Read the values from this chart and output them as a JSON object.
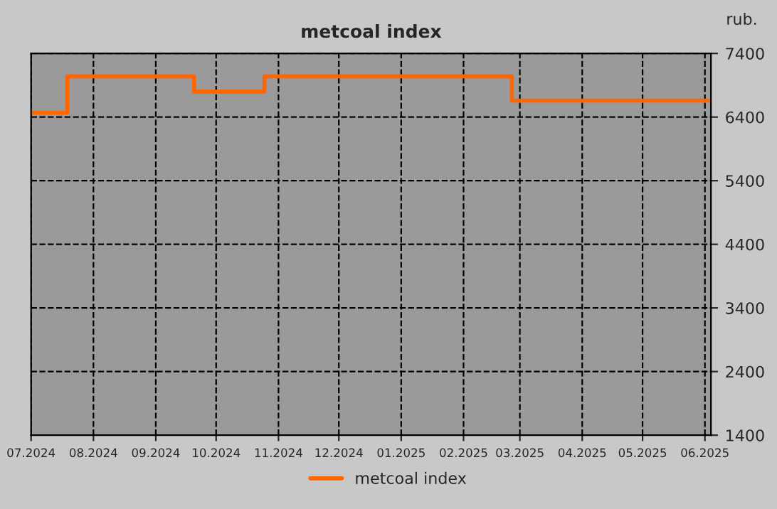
{
  "chart_data": {
    "type": "step",
    "title": "metcoal index",
    "ylabel": "rub.",
    "x": [
      "2024-07-01",
      "2024-07-19",
      "2024-09-20",
      "2024-10-25",
      "2025-02-25",
      "2025-06-03"
    ],
    "series": [
      {
        "name": "metcoal index",
        "color": "#ff6600",
        "values": [
          6470,
          7040,
          6800,
          7040,
          6660,
          6660
        ]
      }
    ],
    "xlim": [
      "2024-07-01",
      "2025-06-04"
    ],
    "xticks": [
      {
        "value": "2024-07-01",
        "label": "07.2024"
      },
      {
        "value": "2024-08-01",
        "label": "08.2024"
      },
      {
        "value": "2024-09-01",
        "label": "09.2024"
      },
      {
        "value": "2024-10-01",
        "label": "10.2024"
      },
      {
        "value": "2024-11-01",
        "label": "11.2024"
      },
      {
        "value": "2024-12-01",
        "label": "12.2024"
      },
      {
        "value": "2025-01-01",
        "label": "01.2025"
      },
      {
        "value": "2025-02-01",
        "label": "02.2025"
      },
      {
        "value": "2025-03-01",
        "label": "03.2025"
      },
      {
        "value": "2025-04-01",
        "label": "04.2025"
      },
      {
        "value": "2025-05-01",
        "label": "05.2025"
      },
      {
        "value": "2025-06-01",
        "label": "06.2025"
      }
    ],
    "ylim": [
      1400,
      7400
    ],
    "yticks": [
      1400,
      2400,
      3400,
      4400,
      5400,
      6400,
      7400
    ],
    "grid": true,
    "legend": "bottom",
    "line_style": "solid",
    "marker": "none"
  }
}
